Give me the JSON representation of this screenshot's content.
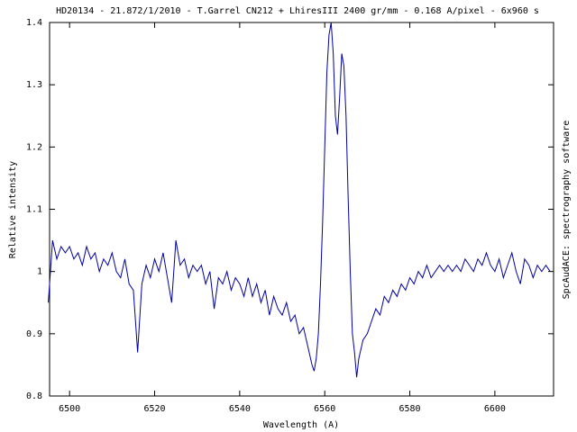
{
  "chart_data": {
    "type": "line",
    "title": "HD20134 - 21.872/1/2010 - T.Garrel CN212 + LhiresIII 2400 gr/mm - 0.168 A/pixel - 6x960 s",
    "x_label": "Wavelength (A)",
    "y_label": "Relative intensity",
    "side_note": "SpcAudACE: spectrography software",
    "color": "#0000a0",
    "xlim": [
      6495.3,
      6613.8
    ],
    "ylim": [
      0.8,
      1.4
    ],
    "xticks": [
      6500,
      6520,
      6540,
      6560,
      6580,
      6600
    ],
    "yticks": [
      0.8,
      0.9,
      1,
      1.1,
      1.2,
      1.3,
      1.4
    ],
    "x": [
      6495,
      6496,
      6497,
      6498,
      6499,
      6500,
      6501,
      6502,
      6503,
      6504,
      6505,
      6506,
      6507,
      6508,
      6509,
      6510,
      6511,
      6512,
      6513,
      6514,
      6515,
      6516,
      6517,
      6518,
      6519,
      6520,
      6521,
      6522,
      6523,
      6524,
      6525,
      6526,
      6527,
      6528,
      6529,
      6530,
      6531,
      6532,
      6533,
      6534,
      6535,
      6536,
      6537,
      6538,
      6539,
      6540,
      6541,
      6542,
      6543,
      6544,
      6545,
      6546,
      6547,
      6548,
      6549,
      6550,
      6551,
      6552,
      6553,
      6554,
      6555,
      6556,
      6557,
      6557.5,
      6558,
      6558.5,
      6559,
      6559.5,
      6560,
      6560.5,
      6561,
      6561.5,
      6562,
      6562.5,
      6563,
      6563.5,
      6564,
      6564.5,
      6565,
      6565.5,
      6566,
      6566.5,
      6567,
      6567.5,
      6568,
      6569,
      6570,
      6571,
      6572,
      6573,
      6574,
      6575,
      6576,
      6577,
      6578,
      6579,
      6580,
      6581,
      6582,
      6583,
      6584,
      6585,
      6586,
      6587,
      6588,
      6589,
      6590,
      6591,
      6592,
      6593,
      6594,
      6595,
      6596,
      6597,
      6598,
      6599,
      6600,
      6601,
      6602,
      6603,
      6604,
      6605,
      6606,
      6607,
      6608,
      6609,
      6610,
      6611,
      6612,
      6613
    ],
    "values": [
      0.95,
      1.05,
      1.02,
      1.04,
      1.03,
      1.04,
      1.02,
      1.03,
      1.01,
      1.04,
      1.02,
      1.03,
      1.0,
      1.02,
      1.01,
      1.03,
      1.0,
      0.99,
      1.02,
      0.98,
      0.97,
      0.87,
      0.98,
      1.01,
      0.99,
      1.02,
      1.0,
      1.03,
      0.99,
      0.95,
      1.05,
      1.01,
      1.02,
      0.99,
      1.01,
      1.0,
      1.01,
      0.98,
      1.0,
      0.94,
      0.99,
      0.98,
      1.0,
      0.97,
      0.99,
      0.98,
      0.96,
      0.99,
      0.96,
      0.98,
      0.95,
      0.97,
      0.93,
      0.96,
      0.94,
      0.93,
      0.95,
      0.92,
      0.93,
      0.9,
      0.91,
      0.88,
      0.85,
      0.84,
      0.86,
      0.9,
      0.98,
      1.08,
      1.2,
      1.32,
      1.38,
      1.4,
      1.35,
      1.25,
      1.22,
      1.28,
      1.35,
      1.33,
      1.25,
      1.12,
      1.0,
      0.9,
      0.87,
      0.83,
      0.86,
      0.89,
      0.9,
      0.92,
      0.94,
      0.93,
      0.96,
      0.95,
      0.97,
      0.96,
      0.98,
      0.97,
      0.99,
      0.98,
      1.0,
      0.99,
      1.01,
      0.99,
      1.0,
      1.01,
      1.0,
      1.01,
      1.0,
      1.01,
      1.0,
      1.02,
      1.01,
      1.0,
      1.02,
      1.01,
      1.03,
      1.01,
      1.0,
      1.02,
      0.99,
      1.01,
      1.03,
      1.0,
      0.98,
      1.02,
      1.01,
      0.99,
      1.01,
      1.0,
      1.01,
      1.0
    ]
  }
}
